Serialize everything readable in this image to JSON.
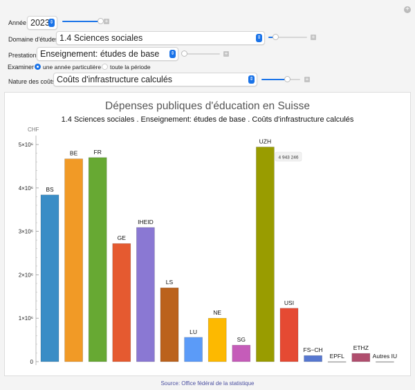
{
  "controls": {
    "year": {
      "label": "Année",
      "value": "2023",
      "slider": 0.95
    },
    "domain": {
      "label": "Domaine d'études",
      "value": "1.4 Sciences sociales",
      "slider": 0.2
    },
    "prestation": {
      "label": "Prestation",
      "value": "Enseignement: études de base",
      "slider": 0.0
    },
    "examine": {
      "label": "Examiner",
      "options": [
        "une année particulière",
        "toute la période"
      ],
      "selected": 0
    },
    "cost": {
      "label": "Nature des coûts",
      "value": "Coûts d'infrastructure calculés",
      "slider": 0.65
    }
  },
  "footer": {
    "source": "Source: Office fédéral de la statistique"
  },
  "tooltip": "4 943 246",
  "chart_data": {
    "type": "bar",
    "title": "Dépenses publiques d'éducation en Suisse",
    "subtitle": "1.4 Sciences sociales .  Enseignement: études de base .  Coûts d'infrastructure calculés",
    "ylabel": "CHF",
    "ylim": [
      0,
      5000000
    ],
    "yticks": [
      0,
      1000000,
      2000000,
      3000000,
      4000000,
      5000000
    ],
    "ytick_labels": [
      "0",
      "1×10⁶",
      "2×10⁶",
      "3×10⁶",
      "4×10⁶",
      "5×10⁶"
    ],
    "categories": [
      "BS",
      "BE",
      "FR",
      "GE",
      "IHEID",
      "LS",
      "LU",
      "NE",
      "SG",
      "UZH",
      "USI",
      "FS−CH",
      "EPFL",
      "ETHZ",
      "Autres IU"
    ],
    "values": [
      3840000,
      4670000,
      4700000,
      2720000,
      3090000,
      1700000,
      560000,
      1000000,
      380000,
      4943246,
      1230000,
      140000,
      0,
      190000,
      0
    ],
    "colors": [
      "#3a8dc6",
      "#f19a26",
      "#67a933",
      "#e55a30",
      "#8a78d3",
      "#bb621c",
      "#5b9bf8",
      "#fdb900",
      "#c55cb9",
      "#999c00",
      "#e54a33",
      "#5677d0",
      "#a5a5a5",
      "#b04e6e",
      "#a5a5a5"
    ]
  }
}
